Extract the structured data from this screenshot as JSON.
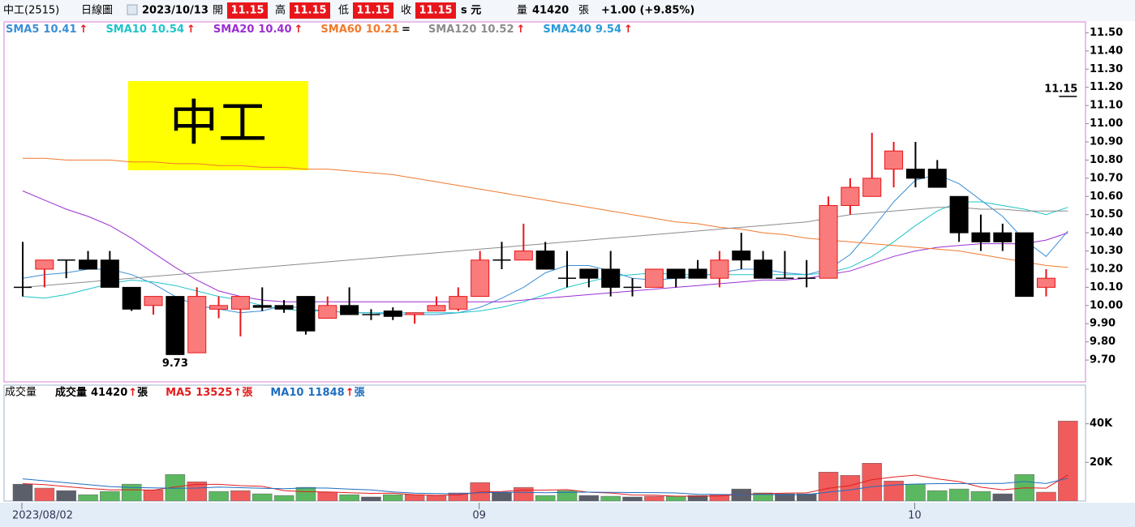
{
  "header": {
    "stock": "中工(2515)",
    "period": "日線圖",
    "date": "2023/10/13",
    "open_label": "開",
    "high_label": "高",
    "low_label": "低",
    "close_label": "收",
    "currency": "s 元",
    "volume_label": "量",
    "change": "+1.00 (+9.85%)"
  },
  "chart_data": [
    {
      "type": "candlestick",
      "annotation": "中工",
      "open": [
        10.1,
        10.2,
        10.25,
        10.25,
        10.25,
        10.1,
        10.0,
        10.05,
        9.74,
        9.98,
        9.98,
        10.0,
        10.0,
        10.05,
        9.93,
        10.0,
        9.95,
        9.97,
        9.95,
        9.97,
        9.98,
        10.05,
        10.25,
        10.25,
        10.3,
        10.15,
        10.2,
        10.2,
        10.1,
        10.1,
        10.2,
        10.2,
        10.15,
        10.3,
        10.25,
        10.15,
        10.15,
        10.15,
        10.55,
        10.6,
        10.75,
        10.75,
        10.75,
        10.6,
        10.4,
        10.4,
        10.4,
        10.1,
        11.15
      ],
      "high": [
        10.35,
        10.25,
        10.25,
        10.3,
        10.3,
        10.1,
        10.05,
        10.05,
        10.1,
        10.05,
        10.05,
        10.1,
        10.03,
        10.05,
        10.05,
        10.1,
        9.98,
        9.99,
        9.96,
        10.05,
        10.1,
        10.3,
        10.35,
        10.45,
        10.35,
        10.3,
        10.2,
        10.3,
        10.15,
        10.2,
        10.2,
        10.25,
        10.3,
        10.4,
        10.3,
        10.3,
        10.25,
        10.6,
        10.7,
        10.95,
        10.9,
        10.9,
        10.8,
        10.6,
        10.5,
        10.45,
        10.4,
        10.2,
        11.15
      ],
      "low": [
        10.05,
        10.1,
        10.15,
        10.2,
        10.1,
        9.97,
        9.95,
        9.73,
        9.74,
        9.93,
        9.83,
        9.97,
        9.96,
        9.84,
        9.93,
        9.95,
        9.92,
        9.92,
        9.9,
        9.97,
        9.97,
        10.05,
        10.2,
        10.25,
        10.2,
        10.1,
        10.1,
        10.05,
        10.05,
        10.1,
        10.1,
        10.15,
        10.1,
        10.2,
        10.15,
        10.15,
        10.1,
        10.15,
        10.5,
        10.6,
        10.65,
        10.65,
        10.65,
        10.35,
        10.3,
        10.3,
        10.05,
        10.05,
        11.15
      ],
      "close": [
        10.1,
        10.25,
        10.25,
        10.2,
        10.1,
        9.98,
        10.05,
        9.73,
        10.05,
        10.0,
        10.05,
        9.99,
        9.98,
        9.86,
        10.0,
        9.95,
        9.95,
        9.94,
        9.96,
        10.0,
        10.05,
        10.25,
        10.25,
        10.3,
        10.2,
        10.15,
        10.15,
        10.1,
        10.1,
        10.2,
        10.15,
        10.15,
        10.25,
        10.25,
        10.15,
        10.15,
        10.15,
        10.55,
        10.65,
        10.7,
        10.85,
        10.7,
        10.65,
        10.4,
        10.35,
        10.35,
        10.05,
        10.15,
        11.15
      ],
      "up_color": "#fa7b7b",
      "up_line_color": "#e8161b",
      "down_color": "#000000",
      "ylim": [
        9.58,
        11.56
      ],
      "yticks": [
        {
          "value": 9.7,
          "label": "9.70"
        },
        {
          "value": 9.8,
          "label": "9.80"
        },
        {
          "value": 9.9,
          "label": "9.90"
        },
        {
          "value": 10,
          "label": "10.00"
        },
        {
          "value": 10.1,
          "label": "10.10"
        },
        {
          "value": 10.2,
          "label": "10.20"
        },
        {
          "value": 10.3,
          "label": "10.30"
        },
        {
          "value": 10.4,
          "label": "10.40"
        },
        {
          "value": 10.5,
          "label": "10.50"
        },
        {
          "value": 10.6,
          "label": "10.60"
        },
        {
          "value": 10.7,
          "label": "10.70"
        },
        {
          "value": 10.8,
          "label": "10.80"
        },
        {
          "value": 10.9,
          "label": "10.90"
        },
        {
          "value": 11,
          "label": "11.00"
        },
        {
          "value": 11.1,
          "label": "11.10"
        },
        {
          "value": 11.2,
          "label": "11.20"
        },
        {
          "value": 11.3,
          "label": "11.30"
        },
        {
          "value": 11.4,
          "label": "11.40"
        },
        {
          "value": 11.5,
          "label": "11.50"
        }
      ],
      "series": [
        {
          "name": "SMA5",
          "color": "#3b8fd6",
          "trend": "↑",
          "values": [
            10.15,
            10.17,
            10.18,
            10.2,
            10.2,
            10.17,
            10.12,
            10.05,
            10.0,
            9.98,
            9.96,
            9.97,
            10.0,
            9.98,
            9.97,
            9.96,
            9.96,
            9.95,
            9.95,
            9.95,
            9.96,
            9.99,
            10.04,
            10.1,
            10.18,
            10.22,
            10.22,
            10.19,
            10.15,
            10.14,
            10.15,
            10.16,
            10.18,
            10.2,
            10.2,
            10.18,
            10.17,
            10.2,
            10.28,
            10.42,
            10.57,
            10.69,
            10.72,
            10.67,
            10.58,
            10.49,
            10.36,
            10.27,
            10.41
          ]
        },
        {
          "name": "SMA10",
          "color": "#1fc4c8",
          "trend": "↑",
          "values": [
            10.05,
            10.04,
            10.06,
            10.09,
            10.12,
            10.14,
            10.13,
            10.11,
            10.08,
            10.05,
            10.03,
            10.0,
            9.98,
            9.97,
            9.97,
            9.96,
            9.96,
            9.96,
            9.96,
            9.96,
            9.96,
            9.97,
            9.99,
            10.02,
            10.06,
            10.1,
            10.13,
            10.16,
            10.17,
            10.18,
            10.17,
            10.17,
            10.17,
            10.17,
            10.17,
            10.17,
            10.17,
            10.18,
            10.21,
            10.27,
            10.35,
            10.44,
            10.52,
            10.57,
            10.57,
            10.55,
            10.53,
            10.5,
            10.54
          ]
        },
        {
          "name": "SMA20",
          "color": "#9b2fd4",
          "trend": "↑",
          "legend_value": "10.40",
          "values": [
            10.63,
            10.58,
            10.53,
            10.49,
            10.44,
            10.37,
            10.29,
            10.21,
            10.14,
            10.08,
            10.05,
            10.03,
            10.02,
            10.02,
            10.02,
            10.02,
            10.02,
            10.02,
            10.02,
            10.02,
            10.02,
            10.02,
            10.02,
            10.03,
            10.04,
            10.05,
            10.06,
            10.07,
            10.08,
            10.09,
            10.1,
            10.11,
            10.12,
            10.13,
            10.14,
            10.14,
            10.15,
            10.17,
            10.19,
            10.23,
            10.27,
            10.3,
            10.32,
            10.33,
            10.34,
            10.34,
            10.34,
            10.36,
            10.4
          ]
        },
        {
          "name": "SMA60",
          "color": "#f07a2c",
          "trend": "=",
          "values": [
            10.81,
            10.81,
            10.8,
            10.8,
            10.8,
            10.79,
            10.79,
            10.78,
            10.78,
            10.77,
            10.77,
            10.76,
            10.76,
            10.75,
            10.75,
            10.74,
            10.73,
            10.72,
            10.7,
            10.68,
            10.66,
            10.64,
            10.62,
            10.6,
            10.58,
            10.56,
            10.54,
            10.52,
            10.5,
            10.48,
            10.46,
            10.45,
            10.43,
            10.42,
            10.4,
            10.39,
            10.37,
            10.36,
            10.35,
            10.34,
            10.33,
            10.32,
            10.31,
            10.3,
            10.28,
            10.26,
            10.24,
            10.22,
            10.21
          ]
        },
        {
          "name": "SMA120",
          "color": "#8c8c8c",
          "trend": "↑",
          "values": [
            10.1,
            10.11,
            10.12,
            10.13,
            10.14,
            10.15,
            10.16,
            10.17,
            10.18,
            10.19,
            10.2,
            10.21,
            10.22,
            10.23,
            10.24,
            10.25,
            10.26,
            10.27,
            10.28,
            10.29,
            10.3,
            10.31,
            10.32,
            10.33,
            10.34,
            10.35,
            10.36,
            10.37,
            10.38,
            10.39,
            10.4,
            10.41,
            10.42,
            10.43,
            10.44,
            10.45,
            10.46,
            10.48,
            10.5,
            10.51,
            10.52,
            10.53,
            10.54,
            10.54,
            10.53,
            10.53,
            10.52,
            10.52,
            10.52
          ]
        },
        {
          "name": "SMA240",
          "color": "#2a9bd8",
          "trend": "↑",
          "values": [
            null,
            null,
            null,
            null,
            null,
            null,
            null,
            null,
            null,
            null,
            null,
            null,
            null,
            null,
            null,
            null,
            null,
            null,
            null,
            null,
            null,
            null,
            null,
            null,
            null,
            null,
            null,
            null,
            null,
            null,
            null,
            null,
            null,
            null,
            null,
            null,
            null,
            null,
            null,
            null,
            null,
            null,
            null,
            null,
            null,
            null,
            null,
            null,
            9.54
          ]
        }
      ]
    },
    {
      "type": "bar",
      "title": "成交量",
      "value_name": "成交量",
      "unit": "張",
      "trend": "↑",
      "categories": [
        "2023/08/02",
        null,
        null,
        null,
        null,
        null,
        null,
        null,
        null,
        null,
        null,
        null,
        null,
        null,
        null,
        null,
        null,
        null,
        null,
        null,
        null,
        "09",
        null,
        null,
        null,
        null,
        null,
        null,
        null,
        null,
        null,
        null,
        null,
        null,
        null,
        null,
        null,
        null,
        null,
        null,
        null,
        "10",
        null,
        null,
        null,
        null,
        null,
        null,
        null
      ],
      "values": [
        8750,
        6700,
        5400,
        3300,
        5000,
        8750,
        5800,
        13750,
        10000,
        5000,
        5400,
        3750,
        2900,
        7100,
        4600,
        3300,
        2100,
        3300,
        3300,
        2900,
        4200,
        9600,
        4600,
        7100,
        2900,
        5400,
        2900,
        2500,
        2100,
        2500,
        2500,
        2900,
        3300,
        6250,
        4200,
        3750,
        3750,
        15000,
        13300,
        19600,
        10400,
        8750,
        5400,
        6250,
        5000,
        3750,
        13750,
        4600,
        41420
      ],
      "up_color": "#f05b5b",
      "down_color": "#5cb860",
      "flat_color": "#5a5f6a",
      "ylim": [
        0,
        60000
      ],
      "yticks": [
        {
          "value": 20000,
          "label": "20K"
        },
        {
          "value": 40000,
          "label": "40K"
        }
      ],
      "series": [
        {
          "name": "MA5",
          "color": "#e41e1e",
          "trend": "↑",
          "values": [
            9000,
            8500,
            7500,
            6500,
            5830,
            5830,
            5650,
            7320,
            8660,
            8660,
            7990,
            7580,
            5410,
            4830,
            4750,
            4330,
            4000,
            4080,
            3320,
            2980,
            3160,
            4660,
            4920,
            5680,
            5680,
            5920,
            4580,
            4160,
            3160,
            3080,
            2500,
            2500,
            2660,
            3490,
            3830,
            4080,
            4250,
            6590,
            8000,
            11080,
            12410,
            13410,
            11490,
            10080,
            7160,
            5830,
            6830,
            6670,
            13525
          ]
        },
        {
          "name": "MA10",
          "color": "#1f6fc0",
          "trend": "↑",
          "values": [
            11500,
            10500,
            9500,
            8500,
            7500,
            7000,
            6800,
            6600,
            6700,
            7245,
            6910,
            6615,
            6365,
            6745,
            6705,
            6160,
            5790,
            4745,
            4075,
            3865,
            3745,
            4330,
            4500,
            4500,
            4330,
            4540,
            4620,
            4540,
            4420,
            4380,
            4210,
            3540,
            3410,
            3325,
            3455,
            3290,
            3375,
            4625,
            5745,
            7455,
            8245,
            8830,
            9040,
            9040,
            9120,
            9120,
            10120,
            9080,
            11848
          ]
        }
      ]
    }
  ]
}
